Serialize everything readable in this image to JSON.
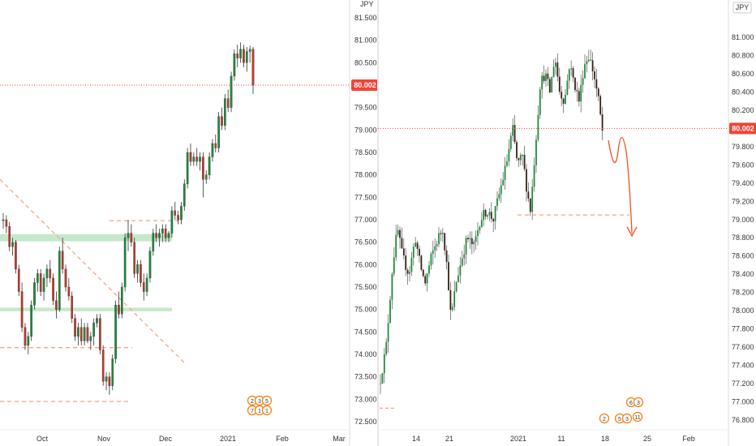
{
  "chart_data": [
    {
      "type": "candlestick",
      "currency": "JPY",
      "last_price": "80.002",
      "y_ticks": [
        "81.500",
        "81.000",
        "80.500",
        "80.000",
        "79.500",
        "79.000",
        "78.500",
        "78.000",
        "77.500",
        "77.000",
        "76.500",
        "76.000",
        "75.500",
        "75.000",
        "74.500",
        "74.000",
        "73.500",
        "73.000",
        "72.500"
      ],
      "x_ticks": [
        "Oct",
        "Nov",
        "Dec",
        "2021",
        "Feb",
        "Mar"
      ],
      "ylim": [
        72.3,
        81.65
      ],
      "grid": false,
      "colors": {
        "up": "#1e8a3c",
        "down": "#c0392b",
        "wick": "#333333",
        "last_price": "#f44336",
        "zone": "#b7e2be",
        "dashed": "#f4a582"
      },
      "candles": [
        [
          76.98,
          77.15,
          76.8,
          77.0
        ],
        [
          77.0,
          77.1,
          76.7,
          76.85
        ],
        [
          76.85,
          76.95,
          76.3,
          76.4
        ],
        [
          76.4,
          76.6,
          76.2,
          76.5
        ],
        [
          76.5,
          76.55,
          75.8,
          75.9
        ],
        [
          75.9,
          76.0,
          75.3,
          75.4
        ],
        [
          75.4,
          75.6,
          74.5,
          74.6
        ],
        [
          74.6,
          74.7,
          74.1,
          74.2
        ],
        [
          74.2,
          74.5,
          74.0,
          74.4
        ],
        [
          74.4,
          75.2,
          74.3,
          75.1
        ],
        [
          75.1,
          75.7,
          75.0,
          75.6
        ],
        [
          75.6,
          75.9,
          75.4,
          75.8
        ],
        [
          75.8,
          75.9,
          75.3,
          75.4
        ],
        [
          75.4,
          75.8,
          75.2,
          75.7
        ],
        [
          75.7,
          76.0,
          75.5,
          75.9
        ],
        [
          75.9,
          76.1,
          75.6,
          75.7
        ],
        [
          75.7,
          75.8,
          75.1,
          75.2
        ],
        [
          75.2,
          75.4,
          74.8,
          75.0
        ],
        [
          75.0,
          76.4,
          74.95,
          76.3
        ],
        [
          76.3,
          76.6,
          75.8,
          75.9
        ],
        [
          75.9,
          76.0,
          75.4,
          75.5
        ],
        [
          75.5,
          75.7,
          75.2,
          75.3
        ],
        [
          75.3,
          75.4,
          74.7,
          74.8
        ],
        [
          74.8,
          74.9,
          74.3,
          74.4
        ],
        [
          74.4,
          74.7,
          74.2,
          74.6
        ],
        [
          74.6,
          74.8,
          74.2,
          74.3
        ],
        [
          74.3,
          74.7,
          74.2,
          74.6
        ],
        [
          74.6,
          74.7,
          74.25,
          74.3
        ],
        [
          74.3,
          74.5,
          74.1,
          74.4
        ],
        [
          74.4,
          74.8,
          74.2,
          74.7
        ],
        [
          74.7,
          74.9,
          74.6,
          74.8
        ],
        [
          74.8,
          74.9,
          74.0,
          74.1
        ],
        [
          74.1,
          74.2,
          73.3,
          73.4
        ],
        [
          73.4,
          73.6,
          73.2,
          73.5
        ],
        [
          73.5,
          73.6,
          73.1,
          73.3
        ],
        [
          73.3,
          74.0,
          73.2,
          73.9
        ],
        [
          73.9,
          75.2,
          73.8,
          75.1
        ],
        [
          75.1,
          75.4,
          74.8,
          74.9
        ],
        [
          74.9,
          75.6,
          74.8,
          75.5
        ],
        [
          75.5,
          76.7,
          75.4,
          76.6
        ],
        [
          76.6,
          77.0,
          76.3,
          76.7
        ],
        [
          76.7,
          76.9,
          76.4,
          76.5
        ],
        [
          76.5,
          76.6,
          75.7,
          75.8
        ],
        [
          75.8,
          76.1,
          75.6,
          76.0
        ],
        [
          76.0,
          76.1,
          75.5,
          75.6
        ],
        [
          75.6,
          75.8,
          75.2,
          75.4
        ],
        [
          75.4,
          75.8,
          75.3,
          75.7
        ],
        [
          75.7,
          76.4,
          75.6,
          76.3
        ],
        [
          76.3,
          76.8,
          76.2,
          76.7
        ],
        [
          76.7,
          76.9,
          76.5,
          76.6
        ],
        [
          76.6,
          76.8,
          76.4,
          76.7
        ],
        [
          76.7,
          76.9,
          76.5,
          76.8
        ],
        [
          76.8,
          76.9,
          76.5,
          76.6
        ],
        [
          76.6,
          76.75,
          76.5,
          76.7
        ],
        [
          76.7,
          77.3,
          76.6,
          77.2
        ],
        [
          77.2,
          77.4,
          77.0,
          77.1
        ],
        [
          77.1,
          77.2,
          76.9,
          77.0
        ],
        [
          77.0,
          77.4,
          76.9,
          77.3
        ],
        [
          77.3,
          77.9,
          77.2,
          77.8
        ],
        [
          77.8,
          78.6,
          77.7,
          78.5
        ],
        [
          78.5,
          78.7,
          78.2,
          78.3
        ],
        [
          78.3,
          78.5,
          78.2,
          78.4
        ],
        [
          78.4,
          78.6,
          78.2,
          78.3
        ],
        [
          78.3,
          78.5,
          78.1,
          78.4
        ],
        [
          78.4,
          78.5,
          77.5,
          77.9
        ],
        [
          77.9,
          78.1,
          77.8,
          78.0
        ],
        [
          78.0,
          78.5,
          77.9,
          78.4
        ],
        [
          78.4,
          78.8,
          78.3,
          78.7
        ],
        [
          78.7,
          78.9,
          78.5,
          78.6
        ],
        [
          78.6,
          79.4,
          78.5,
          79.3
        ],
        [
          79.3,
          79.5,
          79.0,
          79.1
        ],
        [
          79.1,
          79.8,
          79.0,
          79.7
        ],
        [
          79.7,
          79.9,
          79.4,
          79.5
        ],
        [
          79.5,
          80.3,
          79.4,
          80.2
        ],
        [
          80.2,
          80.8,
          80.1,
          80.7
        ],
        [
          80.7,
          80.9,
          80.4,
          80.6
        ],
        [
          80.6,
          80.95,
          80.5,
          80.8
        ],
        [
          80.8,
          80.9,
          80.4,
          80.5
        ],
        [
          80.5,
          80.85,
          80.3,
          80.75
        ],
        [
          80.75,
          80.88,
          80.5,
          80.8
        ],
        [
          80.8,
          80.85,
          79.8,
          80.0
        ]
      ]
    },
    {
      "type": "candlestick",
      "currency": "JPY",
      "last_price": "80.002",
      "y_ticks": [
        "81.000",
        "80.800",
        "80.600",
        "80.400",
        "80.200",
        "80.000",
        "79.800",
        "79.600",
        "79.400",
        "79.200",
        "79.000",
        "78.800",
        "78.600",
        "78.400",
        "78.200",
        "78.000",
        "77.800",
        "77.600",
        "77.400",
        "77.200",
        "77.000",
        "76.800"
      ],
      "x_ticks": [
        "14",
        "21",
        "2021",
        "11",
        "18",
        "25",
        "Feb"
      ],
      "ylim": [
        76.72,
        81.12
      ],
      "grid": false,
      "colors": {
        "up": "#1e8a3c",
        "down": "#3a1f14",
        "wick": "#555555",
        "last_price": "#f44336",
        "dashed": "#f4a582",
        "projection": "#f4511e"
      }
    }
  ],
  "icons": {
    "left_events": [
      "2",
      "3",
      "5",
      "7",
      "1",
      "1"
    ],
    "right_events": [
      "2",
      "6",
      "5",
      "3",
      "11"
    ]
  }
}
